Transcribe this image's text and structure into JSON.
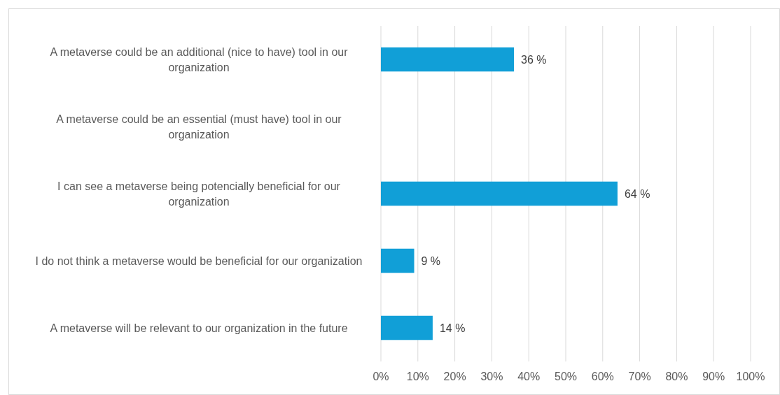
{
  "chart_data": {
    "type": "bar",
    "orientation": "horizontal",
    "categories": [
      "A metaverse could be an additional (nice to have) tool in our organization",
      "A metaverse could be an essential (must have) tool in our organization",
      "I can see a metaverse being potencially beneficial for our organization",
      "I do not think a metaverse would be beneficial for our organization",
      "A metaverse will be relevant to our organization in the future"
    ],
    "values": [
      36,
      null,
      64,
      9,
      14
    ],
    "value_labels": [
      "36 %",
      null,
      "64 %",
      "9 %",
      "14 %"
    ],
    "color": "#119fd7",
    "xlim": [
      0,
      100
    ],
    "xticks": [
      {
        "value": 0,
        "label": "0%"
      },
      {
        "value": 10,
        "label": "10%"
      },
      {
        "value": 20,
        "label": "20%"
      },
      {
        "value": 30,
        "label": "30%"
      },
      {
        "value": 40,
        "label": "40%"
      },
      {
        "value": 50,
        "label": "50%"
      },
      {
        "value": 60,
        "label": "60%"
      },
      {
        "value": 70,
        "label": "70%"
      },
      {
        "value": 80,
        "label": "80%"
      },
      {
        "value": 90,
        "label": "90%"
      },
      {
        "value": 100,
        "label": "100%"
      }
    ],
    "grid": "x"
  }
}
